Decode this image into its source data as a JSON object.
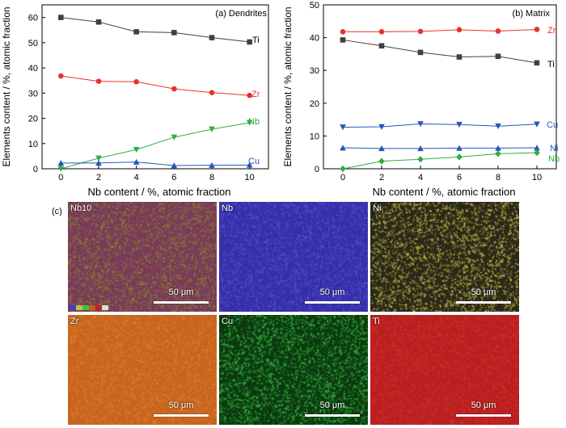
{
  "chart_data": [
    {
      "type": "line",
      "panel": "(a) Dendrites",
      "xlabel": "Nb content / %, atomic fraction",
      "ylabel": "Elements content / %, atomic fraction",
      "x": [
        0,
        2,
        4,
        6,
        8,
        10
      ],
      "xlim": [
        -1,
        11
      ],
      "ylim": [
        0,
        65
      ],
      "xticks": [
        0,
        2,
        4,
        6,
        8,
        10
      ],
      "yticks": [
        0,
        10,
        20,
        30,
        40,
        50,
        60
      ],
      "series": [
        {
          "name": "Ti",
          "color": "#404040",
          "marker": "square",
          "values": [
            60,
            58.2,
            54.3,
            54,
            52,
            50.3
          ]
        },
        {
          "name": "Zr",
          "color": "#e8312f",
          "marker": "circle",
          "values": [
            36.8,
            34.7,
            34.5,
            31.7,
            30.2,
            29.1
          ]
        },
        {
          "name": "Nb",
          "color": "#2eae43",
          "marker": "triangle-down",
          "values": [
            0,
            4.2,
            7.6,
            12.5,
            15.7,
            18.3
          ]
        },
        {
          "name": "Cu",
          "color": "#2456b8",
          "marker": "triangle-up",
          "values": [
            2.3,
            2.3,
            2.7,
            1.3,
            1.4,
            1.5
          ]
        }
      ]
    },
    {
      "type": "line",
      "panel": "(b) Matrix",
      "xlabel": "Nb content / %, atomic fraction",
      "ylabel": "Elements content / %, atomic fraction",
      "x": [
        0,
        2,
        4,
        6,
        8,
        10
      ],
      "xlim": [
        -1,
        11
      ],
      "ylim": [
        0,
        50
      ],
      "xticks": [
        0,
        2,
        4,
        6,
        8,
        10
      ],
      "yticks": [
        0,
        10,
        20,
        30,
        40,
        50
      ],
      "series": [
        {
          "name": "Zr",
          "color": "#e8312f",
          "marker": "circle",
          "values": [
            41.8,
            41.8,
            41.9,
            42.4,
            42,
            42.5
          ]
        },
        {
          "name": "Ti",
          "color": "#404040",
          "marker": "square",
          "values": [
            39.3,
            37.5,
            35.5,
            34.1,
            34.3,
            32.3
          ]
        },
        {
          "name": "Cu",
          "color": "#2456b8",
          "marker": "triangle-down",
          "values": [
            12.7,
            12.8,
            13.7,
            13.5,
            13,
            13.6
          ]
        },
        {
          "name": "Ni",
          "color": "#2456b8",
          "marker": "triangle-up",
          "values": [
            6.4,
            6.2,
            6.2,
            6.3,
            6.3,
            6.4
          ]
        },
        {
          "name": "Nb",
          "color": "#2eae43",
          "marker": "diamond",
          "values": [
            0,
            2.3,
            2.9,
            3.6,
            4.6,
            4.9
          ]
        }
      ]
    }
  ],
  "panel_c": {
    "label": "(c)",
    "maps": [
      {
        "tag": "Nb10",
        "scale": "50 μm",
        "color": "#7a3a5a",
        "accent": "#8a8a2a"
      },
      {
        "tag": "Nb",
        "scale": "50 μm",
        "color": "#3530a8",
        "accent": "#5a50d8"
      },
      {
        "tag": "Ni",
        "scale": "50 μm",
        "color": "#2a2818",
        "accent": "#c8c050"
      },
      {
        "tag": "Zr",
        "scale": "50 μm",
        "color": "#c8641e",
        "accent": "#e08030"
      },
      {
        "tag": "Cu",
        "scale": "50 μm",
        "color": "#0c3a10",
        "accent": "#3ac040"
      },
      {
        "tag": "Ti",
        "scale": "50 μm",
        "color": "#b82020",
        "accent": "#d83030"
      }
    ]
  }
}
